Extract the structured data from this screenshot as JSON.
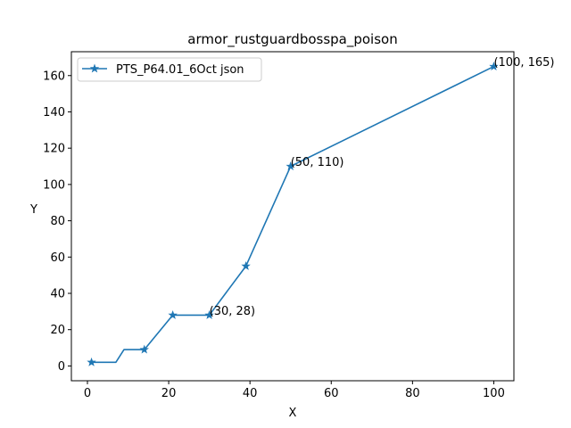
{
  "chart_data": {
    "type": "line",
    "title": "armor_rustguardbosspa_poison",
    "xlabel": "X",
    "ylabel": "Y",
    "xlim": [
      -3.95,
      104.95
    ],
    "ylim": [
      -8.15,
      173.15
    ],
    "xticks": [
      0,
      20,
      40,
      60,
      80,
      100
    ],
    "yticks": [
      0,
      20,
      40,
      60,
      80,
      100,
      120,
      140,
      160
    ],
    "grid": false,
    "legend_position": "upper-left",
    "series": [
      {
        "name": "PTS_P64.01_6Oct json",
        "color": "#1f77b4",
        "marker": "star",
        "x": [
          1,
          7,
          9,
          14,
          21,
          30,
          39,
          50,
          100
        ],
        "y": [
          2,
          2,
          9,
          9,
          28,
          28,
          55,
          110,
          165
        ],
        "marker_x": [
          1,
          14,
          21,
          30,
          39,
          50,
          100
        ],
        "marker_y": [
          2,
          9,
          28,
          28,
          55,
          110,
          165
        ]
      }
    ],
    "annotations": [
      {
        "text": "(30, 28)",
        "x": 30,
        "y": 28
      },
      {
        "text": "(50, 110)",
        "x": 50,
        "y": 110
      },
      {
        "text": "(100, 165)",
        "x": 100,
        "y": 165
      }
    ]
  }
}
